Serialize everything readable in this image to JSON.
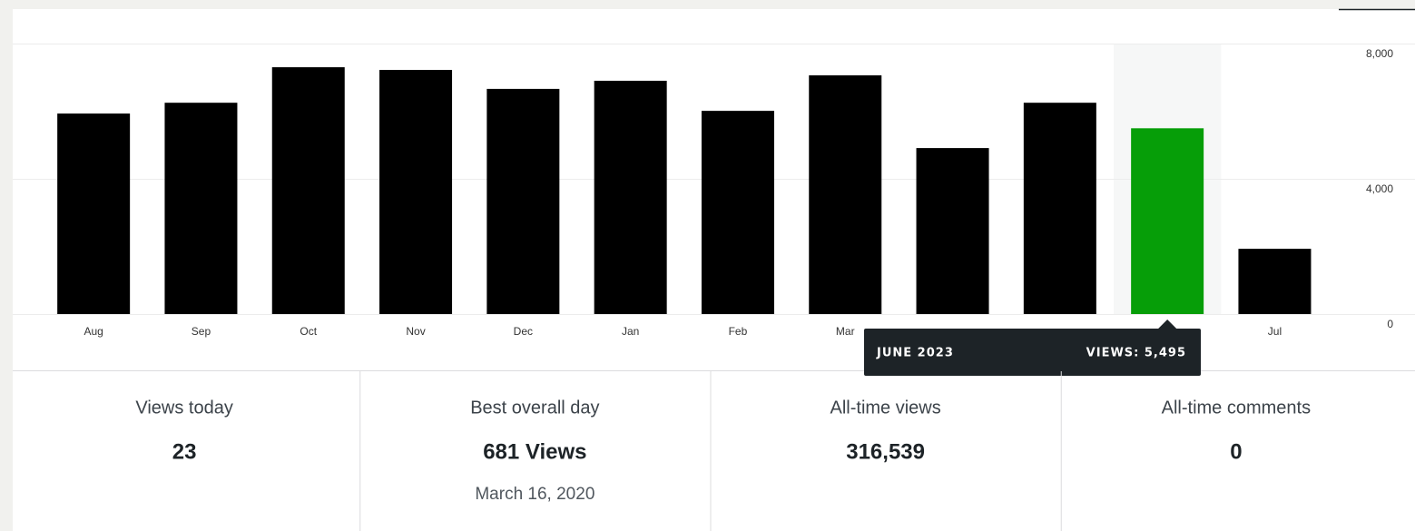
{
  "chart_data": {
    "type": "bar",
    "categories": [
      "Aug",
      "Sep",
      "Oct",
      "Nov",
      "Dec",
      "Jan",
      "Feb",
      "Mar",
      null,
      null,
      null,
      "Jul"
    ],
    "values": [
      5930,
      6250,
      7300,
      7220,
      6660,
      6900,
      6010,
      7060,
      4910,
      6250,
      5495,
      1930
    ],
    "colors": [
      "#000000",
      "#000000",
      "#000000",
      "#000000",
      "#000000",
      "#000000",
      "#000000",
      "#000000",
      "#000000",
      "#000000",
      "#069e08",
      "#000000"
    ],
    "ylim": [
      0,
      8000
    ],
    "yticks": [
      0,
      {
        "value": 4000,
        "label": "4,000"
      },
      {
        "value": 8000,
        "label": "8,000"
      }
    ],
    "grid": true,
    "tooltip": {
      "title": "JUNE 2023",
      "text": "VIEWS: 5,495"
    }
  },
  "stats": [
    {
      "label": "Views today",
      "value": "23"
    },
    {
      "label": "Best overall day",
      "value": "681 Views",
      "sub": "March 16, 2020"
    },
    {
      "label": "All-time views",
      "value": "316,539"
    },
    {
      "label": "All-time comments",
      "value": "0"
    }
  ]
}
